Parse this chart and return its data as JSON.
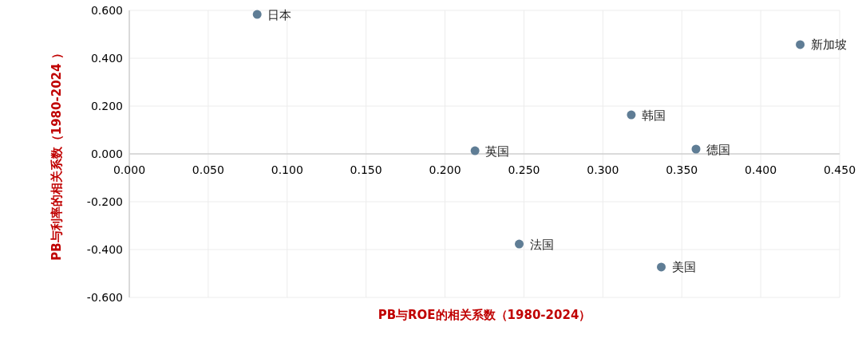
{
  "chart_data": {
    "type": "scatter",
    "xlabel": "PB与ROE的相关系数（1980-2024）",
    "ylabel": "PB与利率的相关系数（1980-2024 ）",
    "series": [
      {
        "name": "日本",
        "color": "#5f7d95",
        "x": [
          0.081
        ],
        "values": [
          0.583
        ]
      },
      {
        "name": "新加坡",
        "color": "#5f7d95",
        "x": [
          0.425
        ],
        "values": [
          0.457
        ]
      },
      {
        "name": "韩国",
        "color": "#5f7d95",
        "x": [
          0.318
        ],
        "values": [
          0.163
        ]
      },
      {
        "name": "德国",
        "color": "#5f7d95",
        "x": [
          0.359
        ],
        "values": [
          0.02
        ]
      },
      {
        "name": "英国",
        "color": "#5f7d95",
        "x": [
          0.219
        ],
        "values": [
          0.013
        ]
      },
      {
        "name": "法国",
        "color": "#5f7d95",
        "x": [
          0.247
        ],
        "values": [
          -0.377
        ]
      },
      {
        "name": "美国",
        "color": "#5f7d95",
        "x": [
          0.337
        ],
        "values": [
          -0.473
        ]
      }
    ],
    "xlim": [
      0,
      0.45
    ],
    "ylim": [
      -0.6,
      0.6
    ],
    "xticks": [
      {
        "value": 0,
        "label": "0.000"
      },
      {
        "value": 0.05,
        "label": "0.050"
      },
      {
        "value": 0.1,
        "label": "0.100"
      },
      {
        "value": 0.15,
        "label": "0.150"
      },
      {
        "value": 0.2,
        "label": "0.200"
      },
      {
        "value": 0.25,
        "label": "0.250"
      },
      {
        "value": 0.3,
        "label": "0.300"
      },
      {
        "value": 0.35,
        "label": "0.350"
      },
      {
        "value": 0.4,
        "label": "0.400"
      },
      {
        "value": 0.45,
        "label": "0.450"
      }
    ],
    "yticks": [
      {
        "value": -0.6,
        "label": "-0.600"
      },
      {
        "value": -0.4,
        "label": "-0.400"
      },
      {
        "value": -0.2,
        "label": "-0.200"
      },
      {
        "value": 0,
        "label": "0.000"
      },
      {
        "value": 0.2,
        "label": "0.200"
      },
      {
        "value": 0.4,
        "label": "0.400"
      },
      {
        "value": 0.6,
        "label": "0.600"
      }
    ],
    "grid": true,
    "marker": "circle"
  }
}
